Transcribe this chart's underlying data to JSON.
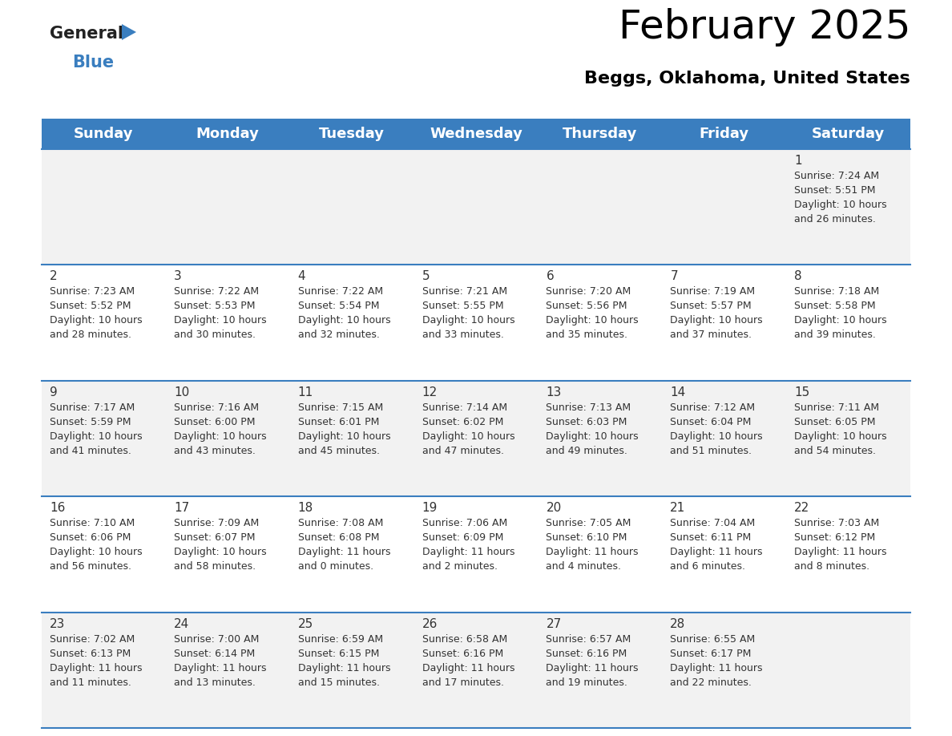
{
  "title": "February 2025",
  "subtitle": "Beggs, Oklahoma, United States",
  "header_bg_color": "#3a7ebf",
  "header_text_color": "#FFFFFF",
  "cell_bg_color_light": "#f2f2f2",
  "cell_bg_color_white": "#ffffff",
  "day_headers": [
    "Sunday",
    "Monday",
    "Tuesday",
    "Wednesday",
    "Thursday",
    "Friday",
    "Saturday"
  ],
  "days": [
    {
      "day": 1,
      "col": 6,
      "row": 0,
      "sunrise": "7:24 AM",
      "sunset": "5:51 PM",
      "daylight": "10 hours and 26 minutes"
    },
    {
      "day": 2,
      "col": 0,
      "row": 1,
      "sunrise": "7:23 AM",
      "sunset": "5:52 PM",
      "daylight": "10 hours and 28 minutes"
    },
    {
      "day": 3,
      "col": 1,
      "row": 1,
      "sunrise": "7:22 AM",
      "sunset": "5:53 PM",
      "daylight": "10 hours and 30 minutes"
    },
    {
      "day": 4,
      "col": 2,
      "row": 1,
      "sunrise": "7:22 AM",
      "sunset": "5:54 PM",
      "daylight": "10 hours and 32 minutes"
    },
    {
      "day": 5,
      "col": 3,
      "row": 1,
      "sunrise": "7:21 AM",
      "sunset": "5:55 PM",
      "daylight": "10 hours and 33 minutes"
    },
    {
      "day": 6,
      "col": 4,
      "row": 1,
      "sunrise": "7:20 AM",
      "sunset": "5:56 PM",
      "daylight": "10 hours and 35 minutes"
    },
    {
      "day": 7,
      "col": 5,
      "row": 1,
      "sunrise": "7:19 AM",
      "sunset": "5:57 PM",
      "daylight": "10 hours and 37 minutes"
    },
    {
      "day": 8,
      "col": 6,
      "row": 1,
      "sunrise": "7:18 AM",
      "sunset": "5:58 PM",
      "daylight": "10 hours and 39 minutes"
    },
    {
      "day": 9,
      "col": 0,
      "row": 2,
      "sunrise": "7:17 AM",
      "sunset": "5:59 PM",
      "daylight": "10 hours and 41 minutes"
    },
    {
      "day": 10,
      "col": 1,
      "row": 2,
      "sunrise": "7:16 AM",
      "sunset": "6:00 PM",
      "daylight": "10 hours and 43 minutes"
    },
    {
      "day": 11,
      "col": 2,
      "row": 2,
      "sunrise": "7:15 AM",
      "sunset": "6:01 PM",
      "daylight": "10 hours and 45 minutes"
    },
    {
      "day": 12,
      "col": 3,
      "row": 2,
      "sunrise": "7:14 AM",
      "sunset": "6:02 PM",
      "daylight": "10 hours and 47 minutes"
    },
    {
      "day": 13,
      "col": 4,
      "row": 2,
      "sunrise": "7:13 AM",
      "sunset": "6:03 PM",
      "daylight": "10 hours and 49 minutes"
    },
    {
      "day": 14,
      "col": 5,
      "row": 2,
      "sunrise": "7:12 AM",
      "sunset": "6:04 PM",
      "daylight": "10 hours and 51 minutes"
    },
    {
      "day": 15,
      "col": 6,
      "row": 2,
      "sunrise": "7:11 AM",
      "sunset": "6:05 PM",
      "daylight": "10 hours and 54 minutes"
    },
    {
      "day": 16,
      "col": 0,
      "row": 3,
      "sunrise": "7:10 AM",
      "sunset": "6:06 PM",
      "daylight": "10 hours and 56 minutes"
    },
    {
      "day": 17,
      "col": 1,
      "row": 3,
      "sunrise": "7:09 AM",
      "sunset": "6:07 PM",
      "daylight": "10 hours and 58 minutes"
    },
    {
      "day": 18,
      "col": 2,
      "row": 3,
      "sunrise": "7:08 AM",
      "sunset": "6:08 PM",
      "daylight": "11 hours and 0 minutes"
    },
    {
      "day": 19,
      "col": 3,
      "row": 3,
      "sunrise": "7:06 AM",
      "sunset": "6:09 PM",
      "daylight": "11 hours and 2 minutes"
    },
    {
      "day": 20,
      "col": 4,
      "row": 3,
      "sunrise": "7:05 AM",
      "sunset": "6:10 PM",
      "daylight": "11 hours and 4 minutes"
    },
    {
      "day": 21,
      "col": 5,
      "row": 3,
      "sunrise": "7:04 AM",
      "sunset": "6:11 PM",
      "daylight": "11 hours and 6 minutes"
    },
    {
      "day": 22,
      "col": 6,
      "row": 3,
      "sunrise": "7:03 AM",
      "sunset": "6:12 PM",
      "daylight": "11 hours and 8 minutes"
    },
    {
      "day": 23,
      "col": 0,
      "row": 4,
      "sunrise": "7:02 AM",
      "sunset": "6:13 PM",
      "daylight": "11 hours and 11 minutes"
    },
    {
      "day": 24,
      "col": 1,
      "row": 4,
      "sunrise": "7:00 AM",
      "sunset": "6:14 PM",
      "daylight": "11 hours and 13 minutes"
    },
    {
      "day": 25,
      "col": 2,
      "row": 4,
      "sunrise": "6:59 AM",
      "sunset": "6:15 PM",
      "daylight": "11 hours and 15 minutes"
    },
    {
      "day": 26,
      "col": 3,
      "row": 4,
      "sunrise": "6:58 AM",
      "sunset": "6:16 PM",
      "daylight": "11 hours and 17 minutes"
    },
    {
      "day": 27,
      "col": 4,
      "row": 4,
      "sunrise": "6:57 AM",
      "sunset": "6:16 PM",
      "daylight": "11 hours and 19 minutes"
    },
    {
      "day": 28,
      "col": 5,
      "row": 4,
      "sunrise": "6:55 AM",
      "sunset": "6:17 PM",
      "daylight": "11 hours and 22 minutes"
    }
  ],
  "num_rows": 5,
  "divider_color": "#3a7ebf",
  "text_color": "#333333",
  "title_fontsize": 36,
  "subtitle_fontsize": 16,
  "header_fontsize": 13,
  "daynum_fontsize": 11,
  "info_fontsize": 9
}
